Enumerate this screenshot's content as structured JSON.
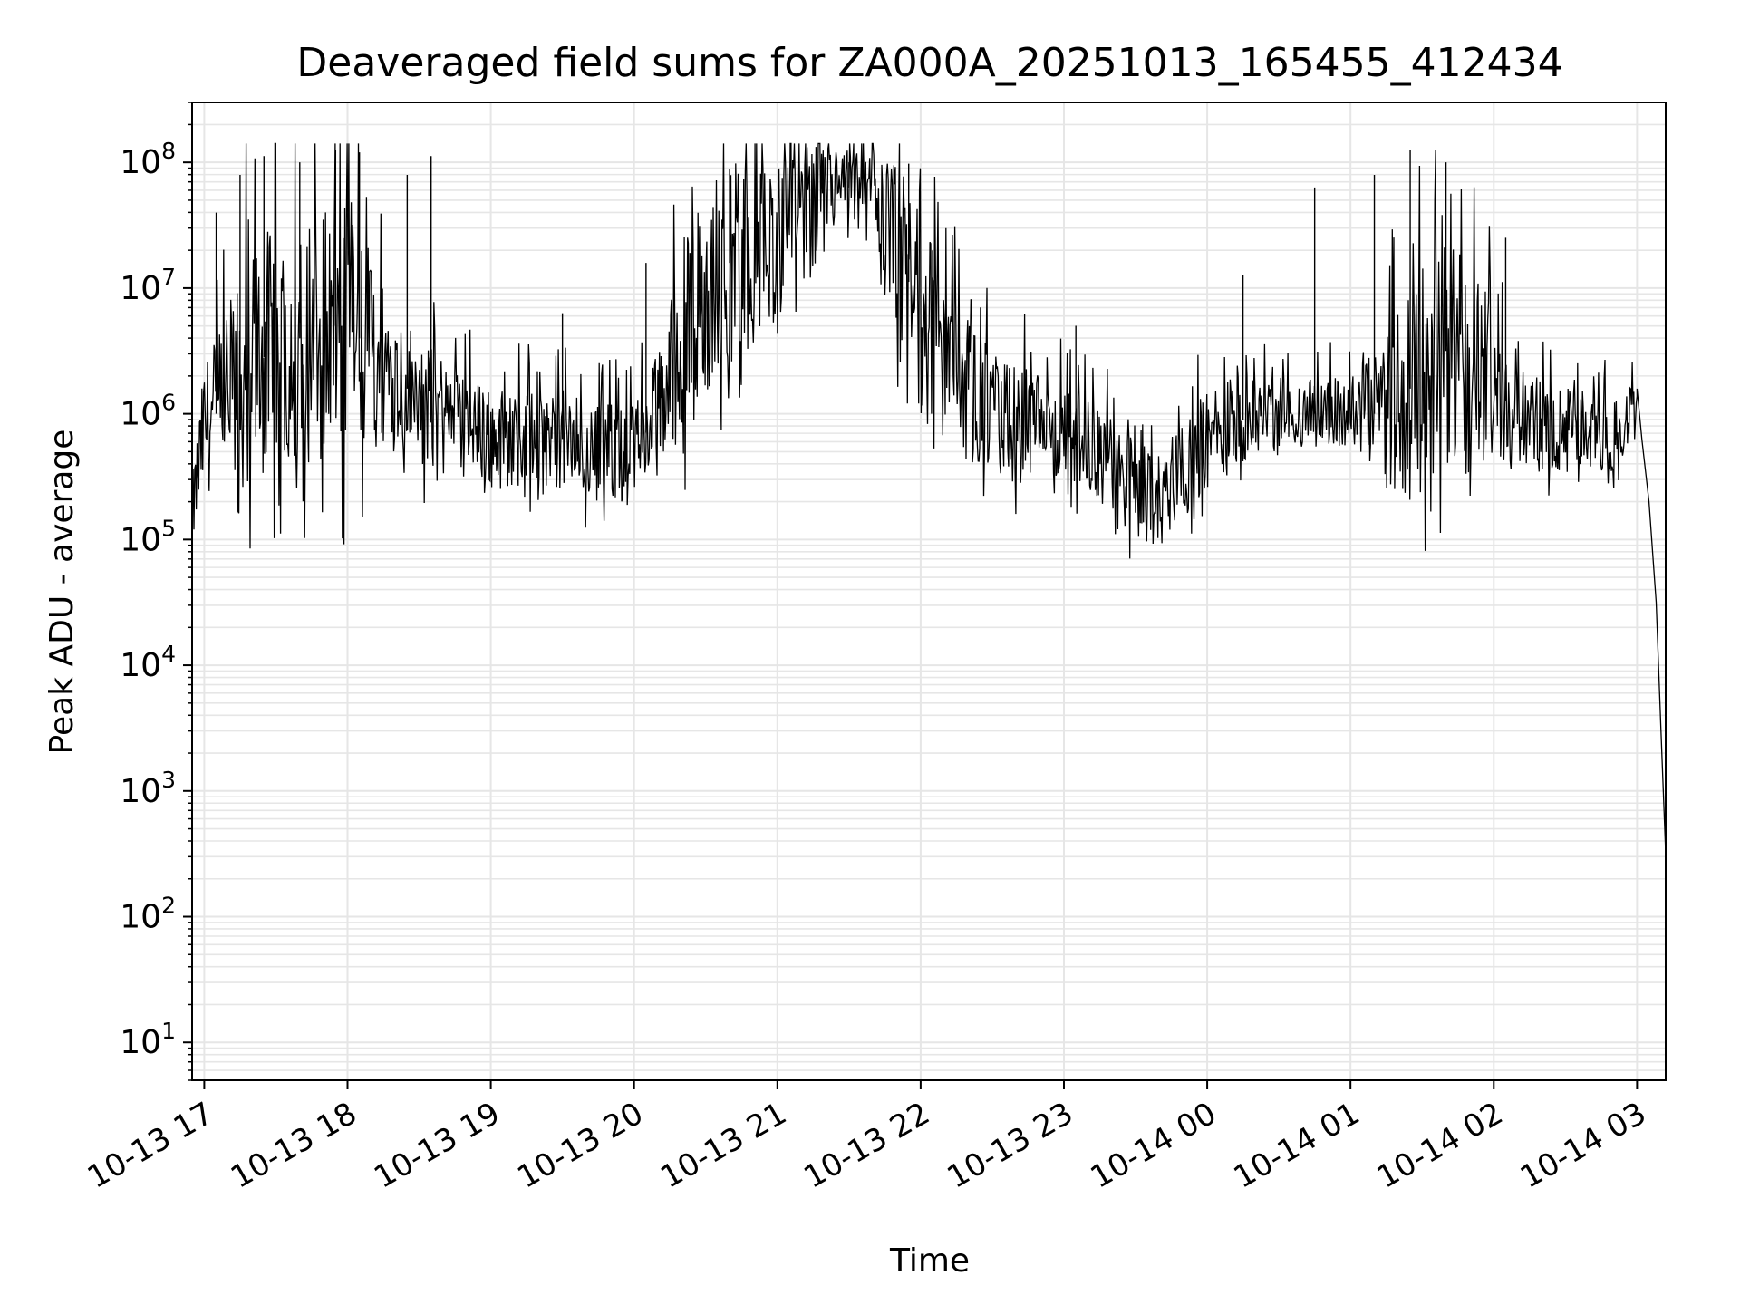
{
  "chart_data": {
    "type": "line",
    "title": "Deaveraged field sums for ZA000A_20251013_165455_412434",
    "xlabel": "Time",
    "ylabel": "Peak ADU - average",
    "yscale": "log",
    "ylim": [
      5,
      300000000
    ],
    "xlim": [
      "2025-10-13 16:54:55",
      "2025-10-14 03:12:00"
    ],
    "grid": "major and minor",
    "legend": "none",
    "colors": {
      "line": "#000000",
      "grid": "#e6e6e6",
      "axes": "#000000",
      "background": "#ffffff"
    },
    "x_ticks": [
      {
        "time": "2025-10-13 17:00",
        "label": "10-13 17"
      },
      {
        "time": "2025-10-13 18:00",
        "label": "10-13 18"
      },
      {
        "time": "2025-10-13 19:00",
        "label": "10-13 19"
      },
      {
        "time": "2025-10-13 20:00",
        "label": "10-13 20"
      },
      {
        "time": "2025-10-13 21:00",
        "label": "10-13 21"
      },
      {
        "time": "2025-10-13 22:00",
        "label": "10-13 22"
      },
      {
        "time": "2025-10-13 23:00",
        "label": "10-13 23"
      },
      {
        "time": "2025-10-14 00:00",
        "label": "10-14 00"
      },
      {
        "time": "2025-10-14 01:00",
        "label": "10-14 01"
      },
      {
        "time": "2025-10-14 02:00",
        "label": "10-14 02"
      },
      {
        "time": "2025-10-14 03:00",
        "label": "10-14 03"
      }
    ],
    "y_ticks": [
      {
        "value": 10,
        "base": "10",
        "exp": "1"
      },
      {
        "value": 100,
        "base": "10",
        "exp": "2"
      },
      {
        "value": 1000,
        "base": "10",
        "exp": "3"
      },
      {
        "value": 10000,
        "base": "10",
        "exp": "4"
      },
      {
        "value": 100000,
        "base": "10",
        "exp": "5"
      },
      {
        "value": 1000000,
        "base": "10",
        "exp": "6"
      },
      {
        "value": 10000000,
        "base": "10",
        "exp": "7"
      },
      {
        "value": 100000000,
        "base": "10",
        "exp": "8"
      }
    ],
    "series": [
      {
        "envelope": {
          "time": [
            "2025-10-13 16:55",
            "2025-10-13 17:00",
            "2025-10-13 17:10",
            "2025-10-13 17:20",
            "2025-10-13 17:30",
            "2025-10-13 17:40",
            "2025-10-13 17:50",
            "2025-10-13 18:00",
            "2025-10-13 18:10",
            "2025-10-13 18:20",
            "2025-10-13 18:30",
            "2025-10-13 18:40",
            "2025-10-13 18:50",
            "2025-10-13 19:00",
            "2025-10-13 19:10",
            "2025-10-13 19:20",
            "2025-10-13 19:30",
            "2025-10-13 19:40",
            "2025-10-13 19:50",
            "2025-10-13 20:00",
            "2025-10-13 20:10",
            "2025-10-13 20:20",
            "2025-10-13 20:30",
            "2025-10-13 20:40",
            "2025-10-13 20:50",
            "2025-10-13 21:00",
            "2025-10-13 21:10",
            "2025-10-13 21:20",
            "2025-10-13 21:30",
            "2025-10-13 21:40",
            "2025-10-13 21:50",
            "2025-10-13 22:00",
            "2025-10-13 22:10",
            "2025-10-13 22:20",
            "2025-10-13 22:30",
            "2025-10-13 22:40",
            "2025-10-13 22:50",
            "2025-10-13 23:00",
            "2025-10-13 23:10",
            "2025-10-13 23:20",
            "2025-10-13 23:30",
            "2025-10-13 23:40",
            "2025-10-13 23:50",
            "2025-10-14 00:00",
            "2025-10-14 00:10",
            "2025-10-14 00:20",
            "2025-10-14 00:30",
            "2025-10-14 00:40",
            "2025-10-14 00:50",
            "2025-10-14 01:00",
            "2025-10-14 01:10",
            "2025-10-14 01:20",
            "2025-10-14 01:30",
            "2025-10-14 01:40",
            "2025-10-14 01:50",
            "2025-10-14 02:00",
            "2025-10-14 02:10",
            "2025-10-14 02:20",
            "2025-10-14 02:30",
            "2025-10-14 02:40",
            "2025-10-14 02:50",
            "2025-10-14 03:00"
          ],
          "log10_base": [
            5.2,
            5.9,
            6.1,
            6.4,
            6.5,
            6.6,
            6.7,
            6.7,
            6.5,
            6.3,
            6.1,
            6.0,
            5.9,
            5.8,
            5.8,
            5.8,
            5.8,
            5.7,
            5.7,
            5.7,
            6.0,
            6.6,
            6.9,
            7.2,
            7.3,
            7.4,
            7.6,
            7.8,
            7.8,
            7.7,
            7.3,
            6.8,
            6.4,
            6.2,
            6.0,
            5.9,
            5.9,
            5.8,
            5.7,
            5.6,
            5.4,
            5.3,
            5.6,
            5.8,
            5.9,
            6.0,
            6.0,
            6.0,
            6.0,
            6.0,
            6.0,
            6.1,
            6.3,
            6.5,
            6.4,
            6.2,
            6.0,
            5.9,
            5.9,
            5.9,
            5.8,
            6.1
          ],
          "log10_spread": [
            0.3,
            0.5,
            0.8,
            1.0,
            1.0,
            1.0,
            1.1,
            1.1,
            0.8,
            0.6,
            0.5,
            0.5,
            0.4,
            0.4,
            0.4,
            0.4,
            0.4,
            0.4,
            0.4,
            0.4,
            0.5,
            0.8,
            0.9,
            0.8,
            0.7,
            0.6,
            0.5,
            0.4,
            0.3,
            0.4,
            0.7,
            0.8,
            0.7,
            0.6,
            0.5,
            0.5,
            0.4,
            0.4,
            0.4,
            0.4,
            0.4,
            0.4,
            0.4,
            0.4,
            0.4,
            0.3,
            0.3,
            0.3,
            0.3,
            0.3,
            0.5,
            0.8,
            0.9,
            0.9,
            0.9,
            0.6,
            0.4,
            0.4,
            0.3,
            0.3,
            0.3,
            0.2
          ]
        },
        "spikes_log10_peak": [
          {
            "time": "2025-10-13 17:05",
            "log10": 7.6
          },
          {
            "time": "2025-10-13 17:15",
            "log10": 7.9
          },
          {
            "time": "2025-10-13 17:25",
            "log10": 8.05
          },
          {
            "time": "2025-10-13 17:40",
            "log10": 8.0
          },
          {
            "time": "2025-10-13 17:55",
            "log10": 8.1
          },
          {
            "time": "2025-10-13 18:05",
            "log10": 8.08
          },
          {
            "time": "2025-10-13 18:25",
            "log10": 7.9
          },
          {
            "time": "2025-10-13 18:35",
            "log10": 8.05
          },
          {
            "time": "2025-10-13 19:30",
            "log10": 6.8
          },
          {
            "time": "2025-10-13 20:05",
            "log10": 7.2
          },
          {
            "time": "2025-10-13 20:40",
            "log10": 7.95
          },
          {
            "time": "2025-10-13 21:30",
            "log10": 8.0
          },
          {
            "time": "2025-10-13 21:55",
            "log10": 7.99
          },
          {
            "time": "2025-10-13 22:05",
            "log10": 7.3
          },
          {
            "time": "2025-10-13 23:05",
            "log10": 6.7
          },
          {
            "time": "2025-10-14 00:15",
            "log10": 7.1
          },
          {
            "time": "2025-10-14 00:45",
            "log10": 7.8
          },
          {
            "time": "2025-10-14 01:10",
            "log10": 7.9
          },
          {
            "time": "2025-10-14 01:25",
            "log10": 8.1
          },
          {
            "time": "2025-10-14 01:40",
            "log10": 8.0
          },
          {
            "time": "2025-10-14 02:05",
            "log10": 7.4
          }
        ],
        "tail": {
          "time": [
            "2025-10-14 03:00",
            "2025-10-14 03:02",
            "2025-10-14 03:05",
            "2025-10-14 03:08",
            "2025-10-14 03:10",
            "2025-10-14 03:12"
          ],
          "log10": [
            6.2,
            5.8,
            5.3,
            4.5,
            3.5,
            2.5
          ]
        }
      }
    ]
  }
}
